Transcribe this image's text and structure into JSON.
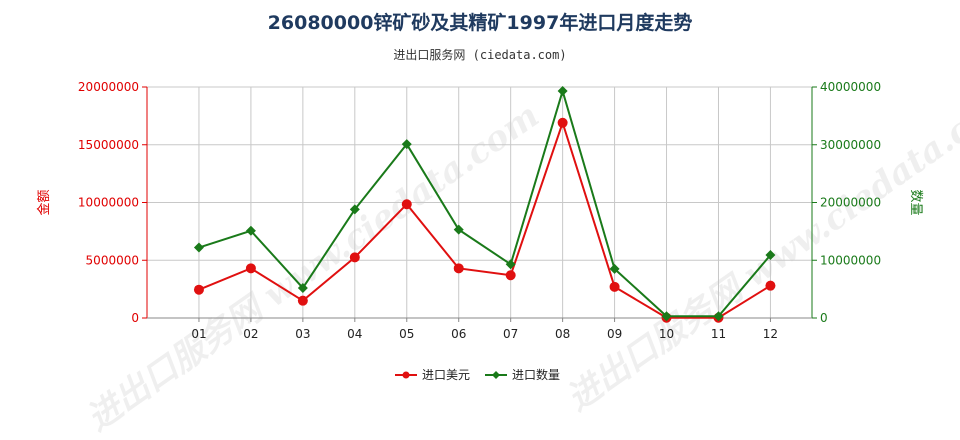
{
  "title": "26080000锌矿砂及其精矿1997年进口月度走势",
  "subtitle": "进出口服务网 (ciedata.com)",
  "watermark": "进出口服务网 www.ciedata.com",
  "chart_data": {
    "type": "line",
    "categories": [
      "01",
      "02",
      "03",
      "04",
      "05",
      "06",
      "07",
      "08",
      "09",
      "10",
      "11",
      "12"
    ],
    "left_axis": {
      "label": "金额",
      "ylim": [
        0,
        20000000
      ],
      "ticks": [
        "0",
        "5000000",
        "10000000",
        "15000000",
        "20000000"
      ],
      "color": "#e00000"
    },
    "right_axis": {
      "label": "数量",
      "ylim": [
        0,
        40000000
      ],
      "ticks": [
        "0",
        "10000000",
        "20000000",
        "30000000",
        "40000000"
      ],
      "color": "#1a7a1a"
    },
    "series": [
      {
        "name": "进口美元",
        "axis": "left",
        "color": "#e01010",
        "marker": "circle",
        "values": [
          2450000,
          4300000,
          1500000,
          5250000,
          9850000,
          4300000,
          3700000,
          16900000,
          2700000,
          20000,
          20000,
          2800000
        ]
      },
      {
        "name": "进口数量",
        "axis": "right",
        "color": "#1a7a1a",
        "marker": "diamond",
        "values": [
          12200000,
          15100000,
          5200000,
          18800000,
          30100000,
          15300000,
          9300000,
          39300000,
          8500000,
          300000,
          300000,
          10900000
        ]
      }
    ],
    "grid": true,
    "legend_position": "bottom"
  }
}
